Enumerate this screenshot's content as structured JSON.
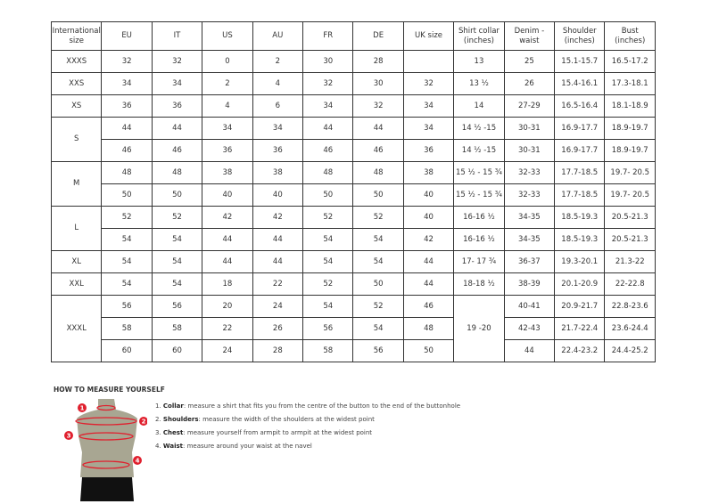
{
  "table": {
    "headers": [
      "International size",
      "EU",
      "IT",
      "US",
      "AU",
      "FR",
      "DE",
      "UK size",
      "Shirt collar (inches)",
      "Denim - waist",
      "Shoulder (inches)",
      "Bust (inches)"
    ],
    "rows": [
      {
        "size": "XXXS",
        "span": 1,
        "cells": [
          "32",
          "32",
          "0",
          "2",
          "30",
          "28",
          "",
          "13",
          "25",
          "15.1-15.7",
          "16.5-17.2"
        ]
      },
      {
        "size": "XXS",
        "span": 1,
        "cells": [
          "34",
          "34",
          "2",
          "4",
          "32",
          "30",
          "32",
          "13 ½",
          "26",
          "15.4-16.1",
          "17.3-18.1"
        ]
      },
      {
        "size": "XS",
        "span": 1,
        "cells": [
          "36",
          "36",
          "4",
          "6",
          "34",
          "32",
          "34",
          "14",
          "27-29",
          "16.5-16.4",
          "18.1-18.9"
        ]
      },
      {
        "size": "S",
        "span": 2,
        "cells": [
          "44",
          "44",
          "34",
          "34",
          "44",
          "44",
          "34",
          "14 ½ -15",
          "30-31",
          "16.9-17.7",
          "18.9-19.7"
        ]
      },
      {
        "size": null,
        "cells": [
          "46",
          "46",
          "36",
          "36",
          "46",
          "46",
          "36",
          "14 ½ -15",
          "30-31",
          "16.9-17.7",
          "18.9-19.7"
        ]
      },
      {
        "size": "M",
        "span": 2,
        "cells": [
          "48",
          "48",
          "38",
          "38",
          "48",
          "48",
          "38",
          "15 ½ - 15 ¾",
          "32-33",
          "17.7-18.5",
          "19.7- 20.5"
        ]
      },
      {
        "size": null,
        "cells": [
          "50",
          "50",
          "40",
          "40",
          "50",
          "50",
          "40",
          "15 ½ - 15 ¾",
          "32-33",
          "17.7-18.5",
          "19.7- 20.5"
        ]
      },
      {
        "size": "L",
        "span": 2,
        "cells": [
          "52",
          "52",
          "42",
          "42",
          "52",
          "52",
          "40",
          "16-16 ½",
          "34-35",
          "18.5-19.3",
          "20.5-21.3"
        ]
      },
      {
        "size": null,
        "cells": [
          "54",
          "54",
          "44",
          "44",
          "54",
          "54",
          "42",
          "16-16 ½",
          "34-35",
          "18.5-19.3",
          "20.5-21.3"
        ]
      },
      {
        "size": "XL",
        "span": 1,
        "cells": [
          "54",
          "54",
          "44",
          "44",
          "54",
          "54",
          "44",
          "17- 17 ¾",
          "36-37",
          "19.3-20.1",
          "21.3-22"
        ]
      },
      {
        "size": "XXL",
        "span": 1,
        "cells": [
          "54",
          "54",
          "18",
          "22",
          "52",
          "50",
          "44",
          "18-18 ½",
          "38-39",
          "20.1-20.9",
          "22-22.8"
        ]
      },
      {
        "size": "XXXL",
        "span": 3,
        "collar_span": 3,
        "cells": [
          "56",
          "56",
          "20",
          "24",
          "54",
          "52",
          "46",
          "19 -20",
          "40-41",
          "20.9-21.7",
          "22.8-23.6"
        ]
      },
      {
        "size": null,
        "cells": [
          "58",
          "58",
          "22",
          "26",
          "56",
          "54",
          "48",
          null,
          "42-43",
          "21.7-22.4",
          "23.6-24.4"
        ]
      },
      {
        "size": null,
        "cells": [
          "60",
          "60",
          "24",
          "28",
          "58",
          "56",
          "50",
          null,
          "44",
          "22.4-23.2",
          "24.4-25.2"
        ]
      }
    ]
  },
  "howto": {
    "title": "HOW TO MEASURE YOURSELF",
    "steps": [
      {
        "n": "1.",
        "term": "Collar",
        "text": ": measure a shirt that fits you from the centre of the button to the end of the buttonhole"
      },
      {
        "n": "2.",
        "term": "Shoulders",
        "text": ": measure the width of the shoulders at the widest point"
      },
      {
        "n": "3.",
        "term": "Chest",
        "text": ": measure yourself from armpit to armpit at the widest point"
      },
      {
        "n": "4.",
        "term": "Waist",
        "text": ": measure around your waist at the navel"
      }
    ],
    "markers": [
      "1",
      "2",
      "3",
      "4"
    ],
    "colors": {
      "marker": "#e0202e",
      "torso": "#a8a692",
      "shorts": "#111111"
    }
  }
}
